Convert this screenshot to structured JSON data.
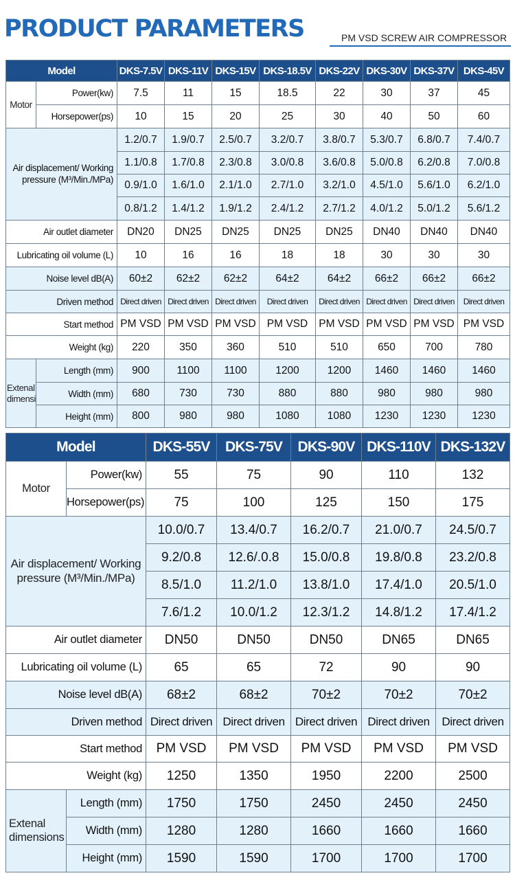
{
  "header": {
    "title": "PRODUCT PARAMETERS",
    "subtitle": "PM VSD SCREW AIR COMPRESSOR"
  },
  "labels": {
    "model": "Model",
    "motor": "Motor",
    "power": "Power(kw)",
    "horsepower": "Horsepower(ps)",
    "air_displacement": "Air displacement/ Working pressure (M³/Min./MPa)",
    "air_outlet": "Air outlet diameter",
    "lub_oil": "Lubricating oil volume (L)",
    "noise": "Noise level dB(A)",
    "driven": "Driven method",
    "start": "Start method",
    "weight": "Weight (kg)",
    "external": "Extenal dimensions",
    "length": "Length (mm)",
    "width": "Width (mm)",
    "height": "Height (mm)"
  },
  "table1": {
    "models": [
      "DKS-7.5V",
      "DKS-11V",
      "DKS-15V",
      "DKS-18.5V",
      "DKS-22V",
      "DKS-30V",
      "DKS-37V",
      "DKS-45V"
    ],
    "power": [
      "7.5",
      "11",
      "15",
      "18.5",
      "22",
      "30",
      "37",
      "45"
    ],
    "horsepower": [
      "10",
      "15",
      "20",
      "25",
      "30",
      "40",
      "50",
      "60"
    ],
    "air": [
      [
        "1.2/0.7",
        "1.9/0.7",
        "2.5/0.7",
        "3.2/0.7",
        "3.8/0.7",
        "5.3/0.7",
        "6.8/0.7",
        "7.4/0.7"
      ],
      [
        "1.1/0.8",
        "1.7/0.8",
        "2.3/0.8",
        "3.0/0.8",
        "3.6/0.8",
        "5.0/0.8",
        "6.2/0.8",
        "7.0/0.8"
      ],
      [
        "0.9/1.0",
        "1.6/1.0",
        "2.1/1.0",
        "2.7/1.0",
        "3.2/1.0",
        "4.5/1.0",
        "5.6/1.0",
        "6.2/1.0"
      ],
      [
        "0.8/1.2",
        "1.4/1.2",
        "1.9/1.2",
        "2.4/1.2",
        "2.7/1.2",
        "4.0/1.2",
        "5.0/1.2",
        "5.6/1.2"
      ]
    ],
    "outlet": [
      "DN20",
      "DN25",
      "DN25",
      "DN25",
      "DN25",
      "DN40",
      "DN40",
      "DN40"
    ],
    "oil": [
      "10",
      "16",
      "16",
      "18",
      "18",
      "30",
      "30",
      "30"
    ],
    "noise": [
      "60±2",
      "62±2",
      "62±2",
      "64±2",
      "64±2",
      "66±2",
      "66±2",
      "66±2"
    ],
    "driven": [
      "Direct driven",
      "Direct driven",
      "Direct driven",
      "Direct driven",
      "Direct driven",
      "Direct driven",
      "Direct driven",
      "Direct driven"
    ],
    "start": [
      "PM VSD",
      "PM VSD",
      "PM VSD",
      "PM VSD",
      "PM VSD",
      "PM VSD",
      "PM VSD",
      "PM VSD"
    ],
    "weight": [
      "220",
      "350",
      "360",
      "510",
      "510",
      "650",
      "700",
      "780"
    ],
    "length": [
      "900",
      "1100",
      "1100",
      "1200",
      "1200",
      "1460",
      "1460",
      "1460"
    ],
    "width": [
      "680",
      "730",
      "730",
      "880",
      "880",
      "980",
      "980",
      "980"
    ],
    "height": [
      "800",
      "980",
      "980",
      "1080",
      "1080",
      "1230",
      "1230",
      "1230"
    ]
  },
  "table2": {
    "models": [
      "DKS-55V",
      "DKS-75V",
      "DKS-90V",
      "DKS-110V",
      "DKS-132V"
    ],
    "power": [
      "55",
      "75",
      "90",
      "110",
      "132"
    ],
    "horsepower": [
      "75",
      "100",
      "125",
      "150",
      "175"
    ],
    "air": [
      [
        "10.0/0.7",
        "13.4/0.7",
        "16.2/0.7",
        "21.0/0.7",
        "24.5/0.7"
      ],
      [
        "9.2/0.8",
        "12.6/.0.8",
        "15.0/0.8",
        "19.8/0.8",
        "23.2/0.8"
      ],
      [
        "8.5/1.0",
        "11.2/1.0",
        "13.8/1.0",
        "17.4/1.0",
        "20.5/1.0"
      ],
      [
        "7.6/1.2",
        "10.0/1.2",
        "12.3/1.2",
        "14.8/1.2",
        "17.4/1.2"
      ]
    ],
    "outlet": [
      "DN50",
      "DN50",
      "DN50",
      "DN65",
      "DN65"
    ],
    "oil": [
      "65",
      "65",
      "72",
      "90",
      "90"
    ],
    "noise": [
      "68±2",
      "68±2",
      "70±2",
      "70±2",
      "70±2"
    ],
    "driven": [
      "Direct driven",
      "Direct driven",
      "Direct driven",
      "Direct driven",
      "Direct driven"
    ],
    "start": [
      "PM VSD",
      "PM VSD",
      "PM VSD",
      "PM VSD",
      "PM VSD"
    ],
    "weight": [
      "1250",
      "1350",
      "1950",
      "2200",
      "2500"
    ],
    "length": [
      "1750",
      "1750",
      "2450",
      "2450",
      "2450"
    ],
    "width": [
      "1280",
      "1280",
      "1660",
      "1660",
      "1660"
    ],
    "height": [
      "1590",
      "1590",
      "1700",
      "1700",
      "1700"
    ]
  }
}
